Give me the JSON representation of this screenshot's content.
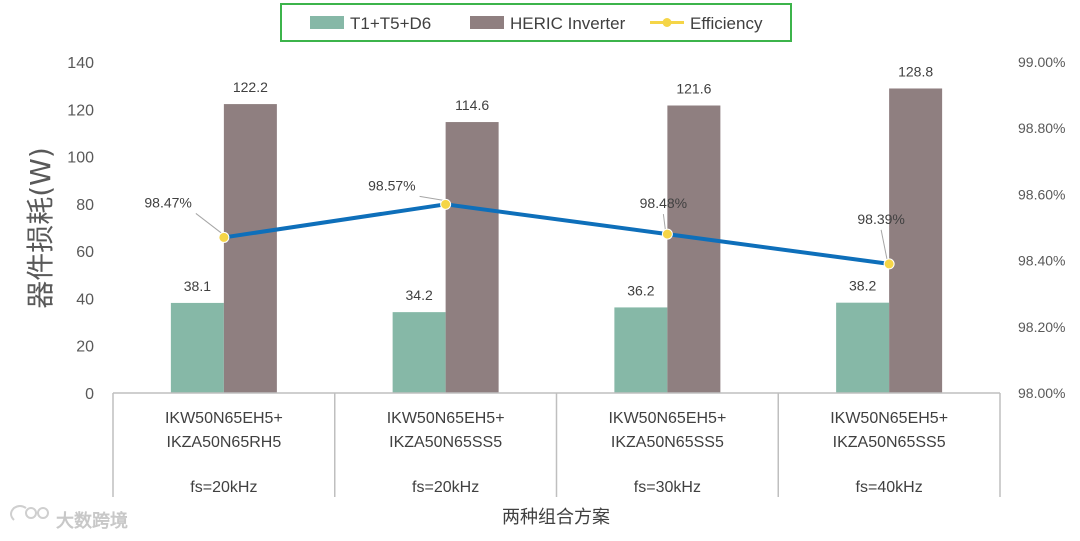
{
  "chart_data": {
    "type": "bar",
    "categories": [
      {
        "lines": [
          "IKW50N65EH5+",
          "IKZA50N65RH5"
        ],
        "fs": "fs=20kHz"
      },
      {
        "lines": [
          "IKW50N65EH5+",
          "IKZA50N65SS5"
        ],
        "fs": "fs=20kHz"
      },
      {
        "lines": [
          "IKW50N65EH5+",
          "IKZA50N65SS5"
        ],
        "fs": "fs=30kHz"
      },
      {
        "lines": [
          "IKW50N65EH5+",
          "IKZA50N65SS5"
        ],
        "fs": "fs=40kHz"
      }
    ],
    "series": [
      {
        "name": "T1+T5+D6",
        "kind": "bar",
        "axis": "left",
        "color": "#86b8a7",
        "values": [
          38.1,
          34.2,
          36.2,
          38.2
        ],
        "labels": [
          "38.1",
          "34.2",
          "36.2",
          "38.2"
        ]
      },
      {
        "name": "HERIC Inverter",
        "kind": "bar",
        "axis": "left",
        "color": "#8f7f80",
        "values": [
          122.2,
          114.6,
          121.6,
          128.8
        ],
        "labels": [
          "122.2",
          "114.6",
          "121.6",
          "128.8"
        ]
      },
      {
        "name": "Efficiency",
        "kind": "line",
        "axis": "right",
        "color": "#0e6fba",
        "marker_color": "#f5d547",
        "values": [
          98.47,
          98.57,
          98.48,
          98.39
        ],
        "labels": [
          "98.47%",
          "98.57%",
          "98.48%",
          "98.39%"
        ]
      }
    ],
    "ylabel": "器件损耗(W)",
    "xlabel": "两种组合方案",
    "ylim": [
      0,
      140
    ],
    "yticks": [
      "0",
      "20",
      "40",
      "60",
      "80",
      "100",
      "120",
      "140"
    ],
    "y2lim": [
      98.0,
      99.0
    ],
    "y2ticks": [
      "98.00%",
      "98.20%",
      "98.40%",
      "98.60%",
      "98.80%",
      "99.00%"
    ],
    "legend_position": "top-center",
    "legend_border_color": "#3cb44b",
    "grid": false
  },
  "watermark": {
    "text": "大数跨境",
    "icon": "weibo-style-logo"
  }
}
